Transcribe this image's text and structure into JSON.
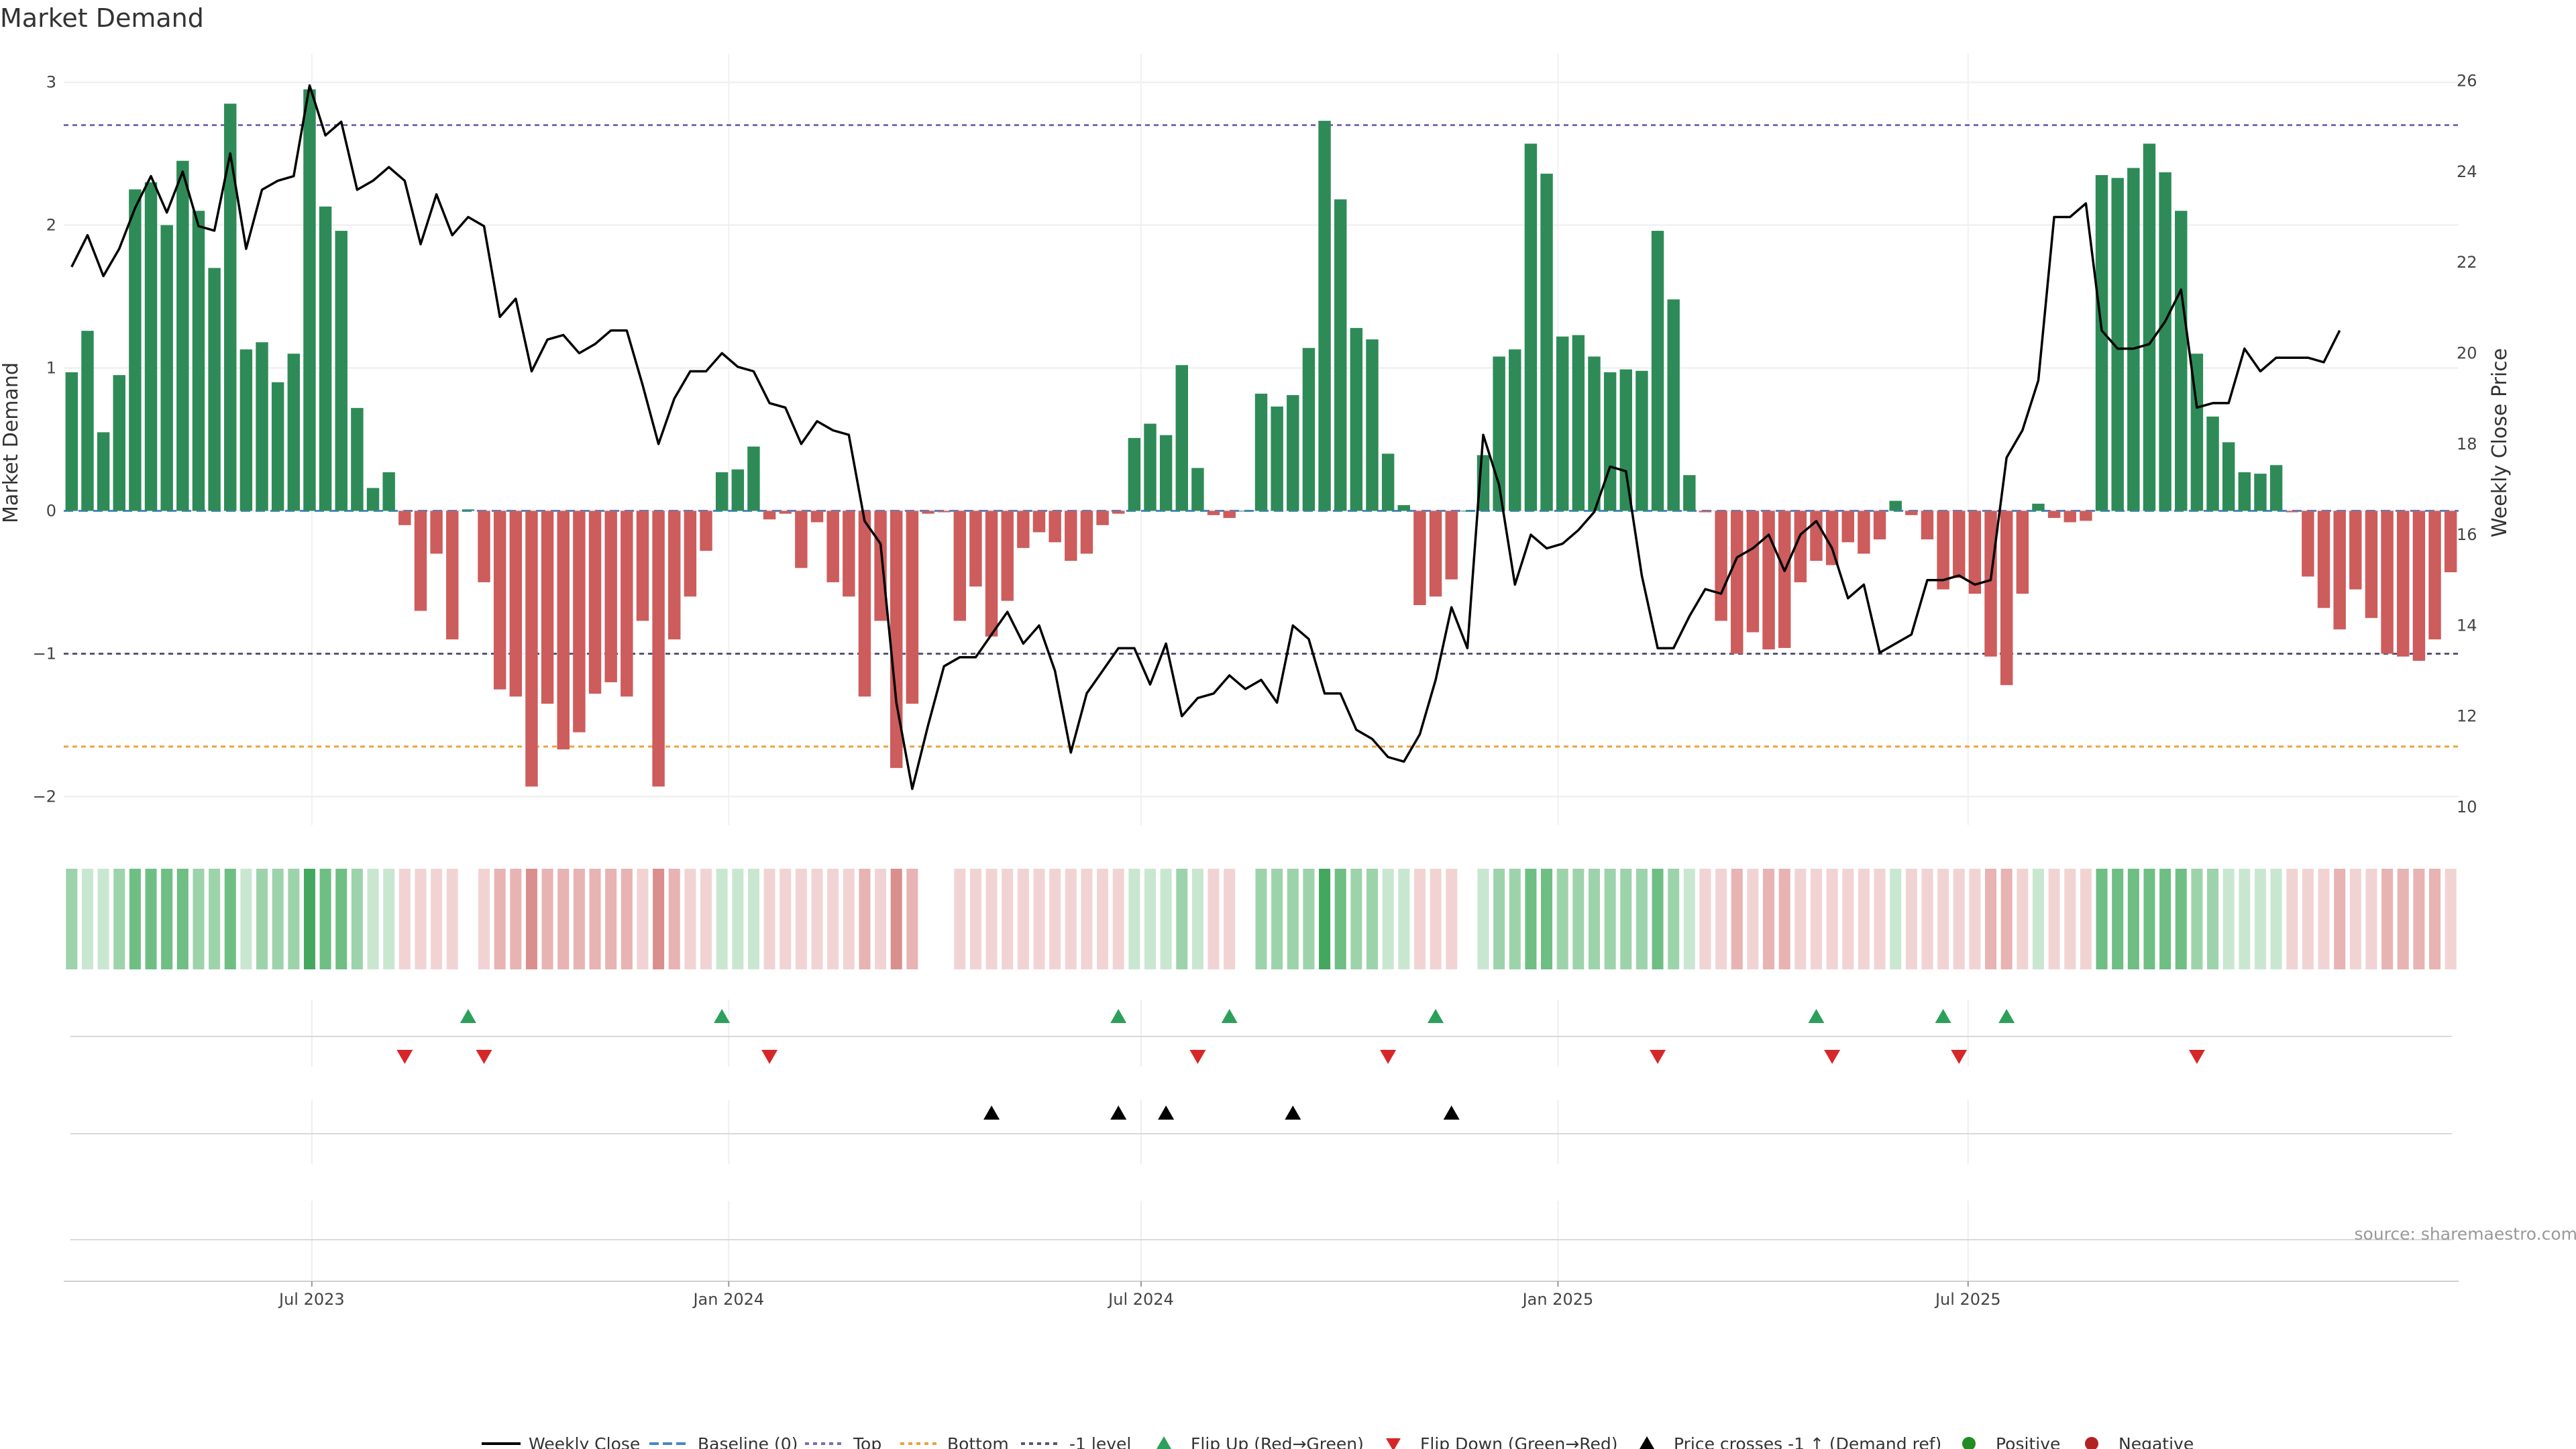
{
  "chart_data": {
    "type": "bar",
    "title": "Market Demand",
    "ylabel": "Market Demand",
    "y2label": "Weekly Close Price",
    "ylim": [
      -2.2,
      3.2
    ],
    "yticks": [
      3,
      2,
      1,
      0,
      -1,
      -2
    ],
    "ytick_labels": [
      "3",
      "2",
      "1",
      "0",
      "−1",
      "−2"
    ],
    "y2lim": [
      9.6,
      26.6
    ],
    "y2ticks": [
      26,
      24,
      22,
      20,
      18,
      16,
      14,
      12,
      10
    ],
    "x_start": "2023-03-17",
    "x_step_days": 7,
    "xticks": [
      {
        "date": "2023-07-01",
        "label": "Jul 2023"
      },
      {
        "date": "2024-01-01",
        "label": "Jan 2024"
      },
      {
        "date": "2024-07-01",
        "label": "Jul 2024"
      },
      {
        "date": "2025-01-01",
        "label": "Jan 2025"
      },
      {
        "date": "2025-07-01",
        "label": "Jul 2025"
      }
    ],
    "reference_lines": {
      "top": 2.7,
      "bottom": -1.65,
      "minus_one": -1.0,
      "baseline": 0
    },
    "demand": [
      0.97,
      1.26,
      0.55,
      0.95,
      2.25,
      2.3,
      2.0,
      2.45,
      2.1,
      1.7,
      2.85,
      1.13,
      1.18,
      0.9,
      1.1,
      2.95,
      2.13,
      1.96,
      0.72,
      0.16,
      0.27,
      -0.1,
      -0.7,
      -0.3,
      -0.9,
      0.01,
      -0.5,
      -1.25,
      -1.3,
      -1.93,
      -1.35,
      -1.67,
      -1.55,
      -1.28,
      -1.2,
      -1.3,
      -0.77,
      -1.93,
      -0.9,
      -0.6,
      -0.28,
      0.27,
      0.29,
      0.45,
      -0.06,
      -0.02,
      -0.4,
      -0.08,
      -0.5,
      -0.6,
      -1.3,
      -0.77,
      -1.8,
      -1.35,
      -0.02,
      -0.01,
      -0.77,
      -0.53,
      -0.88,
      -0.63,
      -0.26,
      -0.15,
      -0.22,
      -0.35,
      -0.3,
      -0.1,
      -0.02,
      0.51,
      0.61,
      0.53,
      1.02,
      0.3,
      -0.03,
      -0.05,
      0.0,
      0.82,
      0.73,
      0.81,
      1.14,
      2.73,
      2.18,
      1.28,
      1.2,
      0.4,
      0.04,
      -0.66,
      -0.6,
      -0.48,
      0.0,
      0.39,
      1.08,
      1.13,
      2.57,
      2.36,
      1.22,
      1.23,
      1.08,
      0.97,
      0.99,
      0.98,
      1.96,
      1.48,
      0.25,
      -0.01,
      -0.77,
      -1.0,
      -0.85,
      -0.97,
      -0.96,
      -0.5,
      -0.35,
      -0.38,
      -0.22,
      -0.3,
      -0.2,
      0.07,
      -0.03,
      -0.2,
      -0.55,
      -0.47,
      -0.58,
      -1.02,
      -1.22,
      -0.58,
      0.05,
      -0.05,
      -0.08,
      -0.07,
      2.35,
      2.33,
      2.4,
      2.57,
      2.37,
      2.1,
      1.1,
      0.66,
      0.48,
      0.27,
      0.26,
      0.32,
      -0.01,
      -0.46,
      -0.68,
      -0.83,
      -0.55,
      -0.75,
      -1.0,
      -1.02,
      -1.05,
      -0.9,
      -0.43
    ],
    "close": [
      21.9,
      22.6,
      21.7,
      22.3,
      23.2,
      23.9,
      23.1,
      24.0,
      22.8,
      22.7,
      24.4,
      22.3,
      23.6,
      23.8,
      23.9,
      25.9,
      24.8,
      25.1,
      23.6,
      23.8,
      24.1,
      23.8,
      22.4,
      23.5,
      22.6,
      23.0,
      22.8,
      20.8,
      21.2,
      19.6,
      20.3,
      20.4,
      20.0,
      20.2,
      20.5,
      20.5,
      19.3,
      18.0,
      19.0,
      19.6,
      19.6,
      20.0,
      19.7,
      19.6,
      18.9,
      18.8,
      18.0,
      18.5,
      18.3,
      18.2,
      16.3,
      15.8,
      12.3,
      10.4,
      11.8,
      13.1,
      13.3,
      13.3,
      13.8,
      14.3,
      13.6,
      14.0,
      13.0,
      11.2,
      12.5,
      13.0,
      13.5,
      13.5,
      12.7,
      13.6,
      12.0,
      12.4,
      12.5,
      12.9,
      12.6,
      12.8,
      12.3,
      14.0,
      13.7,
      12.5,
      12.5,
      11.7,
      11.5,
      11.1,
      11.0,
      11.6,
      12.8,
      14.4,
      13.5,
      18.2,
      17.1,
      14.9,
      16.0,
      15.7,
      15.8,
      16.1,
      16.5,
      17.5,
      17.4,
      15.1,
      13.5,
      13.5,
      14.2,
      14.8,
      14.7,
      15.5,
      15.7,
      16.0,
      15.2,
      16.0,
      16.3,
      15.7,
      14.6,
      14.9,
      13.4,
      13.6,
      13.8,
      15.0,
      15.0,
      15.1,
      14.9,
      15.0,
      17.7,
      18.3,
      19.4,
      23.0,
      23.0,
      23.3,
      20.5,
      20.1,
      20.1,
      20.2,
      20.7,
      21.4,
      18.8,
      18.9,
      18.9,
      20.1,
      19.6,
      19.9,
      19.9,
      19.9,
      19.8,
      20.5
    ],
    "heat_strip_levels": [
      2,
      1,
      1,
      2,
      3,
      3,
      3,
      3,
      2,
      2,
      3,
      1,
      2,
      2,
      2,
      4,
      3,
      3,
      2,
      1,
      1,
      -1,
      -1,
      -1,
      -1,
      0,
      -1,
      -2,
      -2,
      -3,
      -2,
      -2,
      -2,
      -2,
      -2,
      -2,
      -1,
      -3,
      -2,
      -1,
      -1,
      1,
      1,
      1,
      -1,
      -1,
      -1,
      -1,
      -1,
      -1,
      -2,
      -1,
      -3,
      -2,
      0,
      0,
      -1,
      -1,
      -1,
      -1,
      -1,
      -1,
      -1,
      -1,
      -1,
      -1,
      -1,
      1,
      1,
      1,
      2,
      1,
      -1,
      -1,
      0,
      2,
      2,
      2,
      2,
      4,
      3,
      2,
      2,
      1,
      1,
      -1,
      -1,
      -1,
      0,
      1,
      2,
      2,
      3,
      3,
      2,
      2,
      2,
      2,
      2,
      2,
      3,
      2,
      1,
      -1,
      -1,
      -2,
      -1,
      -2,
      -2,
      -1,
      -1,
      -1,
      -1,
      -1,
      -1,
      1,
      -1,
      -1,
      -1,
      -1,
      -1,
      -2,
      -2,
      -1,
      1,
      -1,
      -1,
      -1,
      3,
      3,
      3,
      3,
      3,
      3,
      2,
      2,
      1,
      1,
      1,
      1,
      -1,
      -1,
      -1,
      -2,
      -1,
      -1,
      -2,
      -2,
      -2,
      -2,
      -1
    ],
    "flip_up_weeks": [
      25,
      41,
      66,
      73,
      86,
      110,
      118,
      122
    ],
    "flip_down_weeks": [
      21,
      26,
      44,
      71,
      83,
      100,
      111,
      119,
      134
    ],
    "price_cross_weeks": [
      58,
      66,
      69,
      77,
      87
    ],
    "legend": [
      "Weekly Close",
      "Baseline (0)",
      "Top",
      "Bottom",
      "-1 level",
      "Flip Up (Red→Green)",
      "Flip Down (Green→Red)",
      "Price crosses -1 ↑ (Demand ref)",
      "Positive",
      "Negative"
    ],
    "legend_placement": "bottom-center",
    "colors": {
      "positive": "#2e8b57",
      "negative": "#cd5c5c",
      "close": "#000000",
      "baseline": "#4a86c8",
      "top": "#7b6bb5",
      "bottom": "#f0a03c",
      "minus_one": "#555577",
      "flip_up": "#2ca05a",
      "flip_down": "#d62728",
      "price_cross": "#000000",
      "positive_dot": "#228b22",
      "negative_dot": "#b22222"
    },
    "source": "source: sharemaestro.com"
  }
}
